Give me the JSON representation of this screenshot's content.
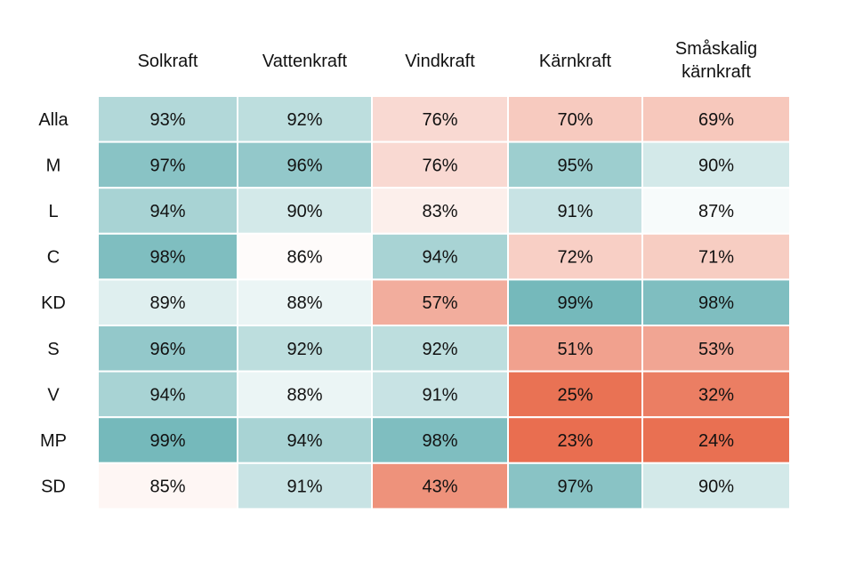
{
  "chart_data": {
    "type": "heatmap",
    "columns": [
      "Solkraft",
      "Vattenkraft",
      "Vindkraft",
      "Kärnkraft",
      "Småskalig kärnkraft"
    ],
    "rows": [
      "Alla",
      "M",
      "L",
      "C",
      "KD",
      "S",
      "V",
      "MP",
      "SD"
    ],
    "values": [
      [
        93,
        92,
        76,
        70,
        69
      ],
      [
        97,
        96,
        76,
        95,
        90
      ],
      [
        94,
        90,
        83,
        91,
        87
      ],
      [
        98,
        86,
        94,
        72,
        71
      ],
      [
        89,
        88,
        57,
        99,
        98
      ],
      [
        96,
        92,
        92,
        51,
        53
      ],
      [
        94,
        88,
        91,
        25,
        32
      ],
      [
        99,
        94,
        98,
        23,
        24
      ],
      [
        85,
        91,
        43,
        97,
        90
      ]
    ],
    "value_suffix": "%",
    "colorscale": {
      "low": "#e8694a",
      "mid": "#ffffff",
      "high": "#6bb4b6"
    }
  }
}
